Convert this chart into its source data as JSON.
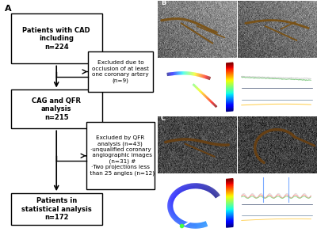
{
  "panel_a_label": "A",
  "panel_b_label": "B",
  "panel_c_label": "C",
  "box1_text": "Patients with CAD\nincluding\nn=224",
  "box2_text": "CAG and QFR\nanalysis\nn=215",
  "box3_text": "Patients in\nstatistical analysis\nn=172",
  "excl1_text": "Excluded due to\nocclusion of at least\none coronary artery\n(n=9)",
  "excl2_text": "Excluded by QFR\nanalysis (n=43)\n·unqualified coronary\n  angiographic images\n  (n=31) #\n·Two projections less\n  than 25 angles (n=12)",
  "bg_color": "#ffffff",
  "box_facecolor": "#ffffff",
  "box_edgecolor": "#000000",
  "arrow_color": "#000000",
  "font_size_main": 6.0,
  "font_size_excl": 5.2,
  "panel_label_fontsize": 8
}
